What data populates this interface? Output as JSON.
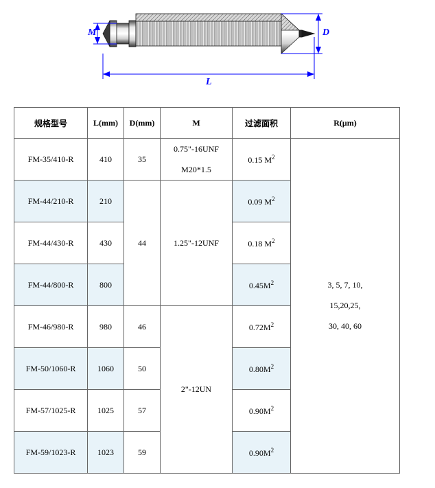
{
  "diagram": {
    "labels": {
      "M": "M",
      "D": "D",
      "L": "L"
    },
    "colors": {
      "line": "#0000ff",
      "label": "#0000ff",
      "arrow_fill": "#0000ff",
      "body_dark": "#4a4a4a",
      "body_mid": "#8a8a8a",
      "body_light": "#e0e0e0",
      "outline": "#1a1a1a"
    }
  },
  "table": {
    "headers": {
      "model": "规格型号",
      "L": "L(mm)",
      "D": "D(mm)",
      "M": "M",
      "area": "过滤面积",
      "R": "R(μm)"
    },
    "rows": [
      {
        "model": "FM-35/410-R",
        "L": "410",
        "area_val": "0.15 ",
        "area_unit": "M",
        "alt": false
      },
      {
        "model": "FM-44/210-R",
        "L": "210",
        "area_val": "0.09 ",
        "area_unit": "M",
        "alt": true
      },
      {
        "model": "FM-44/430-R",
        "L": "430",
        "area_val": "0.18 ",
        "area_unit": "M",
        "alt": false
      },
      {
        "model": "FM-44/800-R",
        "L": "800",
        "area_val": "0.45",
        "area_unit": "M",
        "alt": true
      },
      {
        "model": "FM-46/980-R",
        "L": "980",
        "area_val": "0.72",
        "area_unit": "M",
        "alt": false
      },
      {
        "model": "FM-50/1060-R",
        "L": "1060",
        "area_val": "0.80",
        "area_unit": "M",
        "alt": true
      },
      {
        "model": "FM-57/1025-R",
        "L": "1025",
        "area_val": "0.90",
        "area_unit": "M",
        "alt": false
      },
      {
        "model": "FM-59/1023-R",
        "L": "1023",
        "area_val": "0.90",
        "area_unit": "M",
        "alt": true
      }
    ],
    "d_groups": [
      {
        "value": "35",
        "rowspan": 1
      },
      {
        "value": "44",
        "rowspan": 3
      },
      {
        "value": "46",
        "rowspan": 1
      },
      {
        "value": "50",
        "rowspan": 1
      },
      {
        "value": "57",
        "rowspan": 1
      },
      {
        "value": "59",
        "rowspan": 1
      }
    ],
    "m_groups": [
      {
        "line1": "0.75\"-16UNF",
        "line2": "M20*1.5",
        "rowspan": 1
      },
      {
        "line1": "1.25\"-12UNF",
        "line2": "",
        "rowspan": 3
      },
      {
        "line1": "2\"-12UN",
        "line2": "",
        "rowspan": 4
      }
    ],
    "r_text": {
      "line1": "3,  5,  7,  10,",
      "line2": "15,20,25,",
      "line3": "30,  40,  60"
    },
    "alt_color": "#e8f3f9"
  }
}
